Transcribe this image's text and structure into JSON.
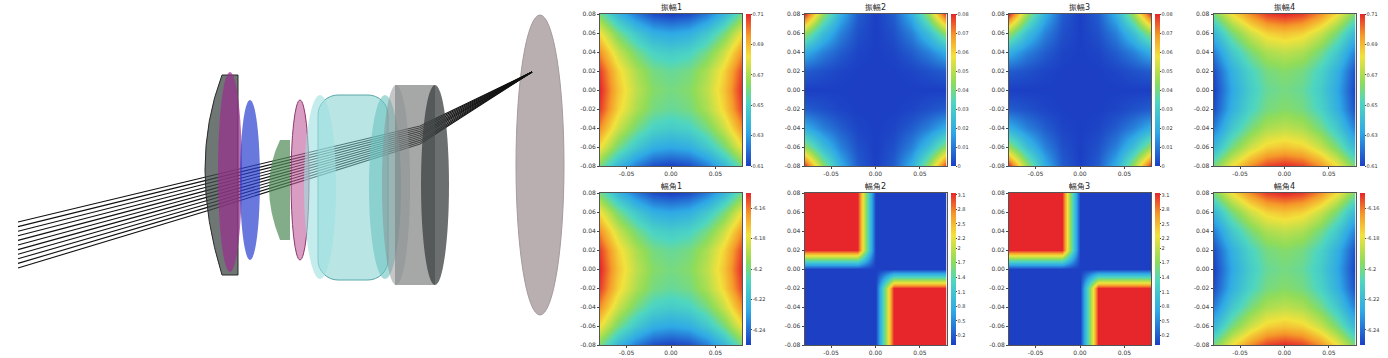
{
  "chart_data": [
    {
      "type": "heatmap",
      "title": "振幅1",
      "x": [
        -0.08,
        -0.06,
        -0.04,
        -0.02,
        0,
        0.02,
        0.04,
        0.06,
        0.08
      ],
      "y": [
        -0.08,
        -0.06,
        -0.04,
        -0.02,
        0,
        0.02,
        0.04,
        0.06,
        0.08
      ],
      "z": [
        [
          0.66,
          0.638,
          0.623,
          0.613,
          0.61,
          0.613,
          0.623,
          0.638,
          0.66
        ],
        [
          0.682,
          0.66,
          0.645,
          0.635,
          0.632,
          0.635,
          0.645,
          0.66,
          0.682
        ],
        [
          0.697,
          0.675,
          0.66,
          0.65,
          0.647,
          0.65,
          0.66,
          0.675,
          0.697
        ],
        [
          0.707,
          0.685,
          0.67,
          0.66,
          0.657,
          0.66,
          0.67,
          0.685,
          0.707
        ],
        [
          0.71,
          0.688,
          0.673,
          0.663,
          0.66,
          0.663,
          0.673,
          0.688,
          0.71
        ],
        [
          0.707,
          0.685,
          0.67,
          0.66,
          0.657,
          0.66,
          0.67,
          0.685,
          0.707
        ],
        [
          0.697,
          0.675,
          0.66,
          0.65,
          0.647,
          0.65,
          0.66,
          0.675,
          0.697
        ],
        [
          0.682,
          0.66,
          0.645,
          0.635,
          0.632,
          0.635,
          0.645,
          0.66,
          0.682
        ],
        [
          0.66,
          0.638,
          0.623,
          0.613,
          0.61,
          0.613,
          0.623,
          0.638,
          0.66
        ]
      ],
      "xlim": [
        -0.08,
        0.08
      ],
      "ylim": [
        -0.08,
        0.08
      ],
      "xticks": [
        -0.05,
        {
          "value": 0,
          "label": "0.00"
        },
        0.05
      ],
      "yticks": [
        -0.08,
        -0.06,
        -0.04,
        -0.02,
        {
          "value": 0,
          "label": "0.00"
        },
        0.02,
        0.04,
        0.06,
        0.08
      ],
      "zlim": [
        0.61,
        0.71
      ],
      "colorbar_ticks": [
        0.61,
        0.63,
        0.65,
        0.67,
        0.69,
        0.71
      ]
    },
    {
      "type": "heatmap",
      "title": "振幅2",
      "x": [
        -0.08,
        -0.06,
        -0.04,
        -0.02,
        0,
        0.02,
        0.04,
        0.06,
        0.08
      ],
      "y": [
        -0.08,
        -0.06,
        -0.04,
        -0.02,
        0,
        0.02,
        0.04,
        0.06,
        0.08
      ],
      "z": [
        [
          0.08,
          0.045,
          0.02,
          0.005,
          0,
          0.005,
          0.02,
          0.045,
          0.08
        ],
        [
          0.045,
          0.025,
          0.011,
          0.003,
          0,
          0.003,
          0.011,
          0.025,
          0.045
        ],
        [
          0.02,
          0.011,
          0.005,
          0.001,
          0,
          0.001,
          0.005,
          0.011,
          0.02
        ],
        [
          0.005,
          0.003,
          0.001,
          0,
          0,
          0,
          0.001,
          0.003,
          0.005
        ],
        [
          0,
          0,
          0,
          0,
          0,
          0,
          0,
          0,
          0
        ],
        [
          0.005,
          0.003,
          0.001,
          0,
          0,
          0,
          0.001,
          0.003,
          0.005
        ],
        [
          0.02,
          0.011,
          0.005,
          0.001,
          0,
          0.001,
          0.005,
          0.011,
          0.02
        ],
        [
          0.045,
          0.025,
          0.011,
          0.003,
          0,
          0.003,
          0.011,
          0.025,
          0.045
        ],
        [
          0.08,
          0.045,
          0.02,
          0.005,
          0,
          0.005,
          0.02,
          0.045,
          0.08
        ]
      ],
      "xlim": [
        -0.08,
        0.08
      ],
      "ylim": [
        -0.08,
        0.08
      ],
      "xticks": [
        -0.05,
        {
          "value": 0,
          "label": "0.00"
        },
        0.05
      ],
      "yticks": [
        -0.08,
        -0.06,
        -0.04,
        -0.02,
        {
          "value": 0,
          "label": "0.00"
        },
        0.02,
        0.04,
        0.06,
        0.08
      ],
      "zlim": [
        0,
        0.08
      ],
      "colorbar_ticks": [
        0,
        0.01,
        0.02,
        0.03,
        0.04,
        0.05,
        0.06,
        0.07,
        0.08
      ]
    },
    {
      "type": "heatmap",
      "title": "振幅3",
      "x": [
        -0.08,
        -0.06,
        -0.04,
        -0.02,
        0,
        0.02,
        0.04,
        0.06,
        0.08
      ],
      "y": [
        -0.08,
        -0.06,
        -0.04,
        -0.02,
        0,
        0.02,
        0.04,
        0.06,
        0.08
      ],
      "z": [
        [
          0.08,
          0.045,
          0.02,
          0.005,
          0,
          0.005,
          0.02,
          0.045,
          0.08
        ],
        [
          0.045,
          0.025,
          0.011,
          0.003,
          0,
          0.003,
          0.011,
          0.025,
          0.045
        ],
        [
          0.02,
          0.011,
          0.005,
          0.001,
          0,
          0.001,
          0.005,
          0.011,
          0.02
        ],
        [
          0.005,
          0.003,
          0.001,
          0,
          0,
          0,
          0.001,
          0.003,
          0.005
        ],
        [
          0,
          0,
          0,
          0,
          0,
          0,
          0,
          0,
          0
        ],
        [
          0.005,
          0.003,
          0.001,
          0,
          0,
          0,
          0.001,
          0.003,
          0.005
        ],
        [
          0.02,
          0.011,
          0.005,
          0.001,
          0,
          0.001,
          0.005,
          0.011,
          0.02
        ],
        [
          0.045,
          0.025,
          0.011,
          0.003,
          0,
          0.003,
          0.011,
          0.025,
          0.045
        ],
        [
          0.08,
          0.045,
          0.02,
          0.005,
          0,
          0.005,
          0.02,
          0.045,
          0.08
        ]
      ],
      "xlim": [
        -0.08,
        0.08
      ],
      "ylim": [
        -0.08,
        0.08
      ],
      "xticks": [
        -0.05,
        {
          "value": 0,
          "label": "0.00"
        },
        0.05
      ],
      "yticks": [
        -0.08,
        -0.06,
        -0.04,
        -0.02,
        {
          "value": 0,
          "label": "0.00"
        },
        0.02,
        0.04,
        0.06,
        0.08
      ],
      "zlim": [
        0,
        0.08
      ],
      "colorbar_ticks": [
        0,
        0.01,
        0.02,
        0.03,
        0.04,
        0.05,
        0.06,
        0.07,
        0.08
      ]
    },
    {
      "type": "heatmap",
      "title": "振幅4",
      "x": [
        -0.08,
        -0.06,
        -0.04,
        -0.02,
        0,
        0.02,
        0.04,
        0.06,
        0.08
      ],
      "y": [
        -0.08,
        -0.06,
        -0.04,
        -0.02,
        0,
        0.02,
        0.04,
        0.06,
        0.08
      ],
      "z": [
        [
          0.66,
          0.682,
          0.697,
          0.707,
          0.71,
          0.707,
          0.697,
          0.682,
          0.66
        ],
        [
          0.638,
          0.66,
          0.675,
          0.685,
          0.688,
          0.685,
          0.675,
          0.66,
          0.638
        ],
        [
          0.623,
          0.645,
          0.66,
          0.67,
          0.673,
          0.67,
          0.66,
          0.645,
          0.623
        ],
        [
          0.613,
          0.635,
          0.65,
          0.66,
          0.663,
          0.66,
          0.65,
          0.635,
          0.613
        ],
        [
          0.61,
          0.632,
          0.647,
          0.657,
          0.66,
          0.657,
          0.647,
          0.632,
          0.61
        ],
        [
          0.613,
          0.635,
          0.65,
          0.66,
          0.663,
          0.66,
          0.65,
          0.635,
          0.613
        ],
        [
          0.623,
          0.645,
          0.66,
          0.67,
          0.673,
          0.67,
          0.66,
          0.645,
          0.623
        ],
        [
          0.638,
          0.66,
          0.675,
          0.685,
          0.688,
          0.685,
          0.675,
          0.66,
          0.638
        ],
        [
          0.66,
          0.682,
          0.697,
          0.707,
          0.71,
          0.707,
          0.697,
          0.682,
          0.66
        ]
      ],
      "xlim": [
        -0.08,
        0.08
      ],
      "ylim": [
        -0.08,
        0.08
      ],
      "xticks": [
        -0.05,
        {
          "value": 0,
          "label": "0.00"
        },
        0.05
      ],
      "yticks": [
        -0.08,
        -0.06,
        -0.04,
        -0.02,
        {
          "value": 0,
          "label": "0.00"
        },
        0.02,
        0.04,
        0.06,
        0.08
      ],
      "zlim": [
        0.61,
        0.71
      ],
      "colorbar_ticks": [
        0.61,
        0.63,
        0.65,
        0.67,
        0.69,
        0.71
      ]
    },
    {
      "type": "heatmap",
      "title": "幅角1",
      "x": [
        -0.08,
        -0.06,
        -0.04,
        -0.02,
        0,
        0.02,
        0.04,
        0.06,
        0.08
      ],
      "y": [
        -0.08,
        -0.06,
        -0.04,
        -0.02,
        0,
        0.02,
        0.04,
        0.06,
        0.08
      ],
      "z": [
        [
          -6.2,
          -6.222,
          -6.237,
          -6.247,
          -6.25,
          -6.247,
          -6.237,
          -6.222,
          -6.2
        ],
        [
          -6.178,
          -6.2,
          -6.215,
          -6.225,
          -6.228,
          -6.225,
          -6.215,
          -6.2,
          -6.178
        ],
        [
          -6.163,
          -6.185,
          -6.2,
          -6.21,
          -6.213,
          -6.21,
          -6.2,
          -6.185,
          -6.163
        ],
        [
          -6.153,
          -6.175,
          -6.19,
          -6.2,
          -6.203,
          -6.2,
          -6.19,
          -6.175,
          -6.153
        ],
        [
          -6.15,
          -6.172,
          -6.187,
          -6.197,
          -6.2,
          -6.197,
          -6.187,
          -6.172,
          -6.15
        ],
        [
          -6.153,
          -6.175,
          -6.19,
          -6.2,
          -6.203,
          -6.2,
          -6.19,
          -6.175,
          -6.153
        ],
        [
          -6.163,
          -6.185,
          -6.2,
          -6.21,
          -6.213,
          -6.21,
          -6.2,
          -6.185,
          -6.163
        ],
        [
          -6.178,
          -6.2,
          -6.215,
          -6.225,
          -6.228,
          -6.225,
          -6.215,
          -6.2,
          -6.178
        ],
        [
          -6.2,
          -6.222,
          -6.237,
          -6.247,
          -6.25,
          -6.247,
          -6.237,
          -6.222,
          -6.2
        ]
      ],
      "xlim": [
        -0.08,
        0.08
      ],
      "ylim": [
        -0.08,
        0.08
      ],
      "xticks": [
        -0.05,
        {
          "value": 0,
          "label": "0.00"
        },
        0.05
      ],
      "yticks": [
        -0.08,
        -0.06,
        -0.04,
        -0.02,
        {
          "value": 0,
          "label": "0.00"
        },
        0.02,
        0.04,
        0.06,
        0.08
      ],
      "zlim": [
        -6.25,
        -6.15
      ],
      "colorbar_ticks": [
        -6.24,
        -6.22,
        -6.2,
        -6.18,
        -6.16
      ]
    },
    {
      "type": "heatmap",
      "title": "幅角2",
      "x": [
        -0.08,
        -0.06,
        -0.04,
        -0.02,
        0,
        0.02,
        0.04,
        0.06,
        0.08
      ],
      "y": [
        -0.08,
        -0.06,
        -0.04,
        -0.02,
        0,
        0.02,
        0.04,
        0.06,
        0.08
      ],
      "z": [
        [
          0,
          0,
          0,
          0,
          0,
          3.14,
          3.14,
          3.14,
          3.14
        ],
        [
          0,
          0,
          0,
          0,
          0,
          3.14,
          3.14,
          3.14,
          3.14
        ],
        [
          0,
          0,
          0,
          0,
          0,
          3.14,
          3.14,
          3.14,
          3.14
        ],
        [
          0,
          0,
          0,
          0,
          0,
          3.14,
          3.14,
          3.14,
          3.14
        ],
        [
          0,
          0,
          0,
          0,
          0,
          0,
          0,
          0,
          0
        ],
        [
          3.14,
          3.14,
          3.14,
          3.14,
          0,
          0,
          0,
          0,
          0
        ],
        [
          3.14,
          3.14,
          3.14,
          3.14,
          0,
          0,
          0,
          0,
          0
        ],
        [
          3.14,
          3.14,
          3.14,
          3.14,
          0,
          0,
          0,
          0,
          0
        ],
        [
          3.14,
          3.14,
          3.14,
          3.14,
          0,
          0,
          0,
          0,
          0
        ]
      ],
      "xlim": [
        -0.08,
        0.08
      ],
      "ylim": [
        -0.08,
        0.08
      ],
      "xticks": [
        -0.05,
        {
          "value": 0,
          "label": "0.00"
        },
        0.05
      ],
      "yticks": [
        -0.08,
        -0.06,
        -0.04,
        -0.02,
        {
          "value": 0,
          "label": "0.00"
        },
        0.02,
        0.04,
        0.06,
        0.08
      ],
      "zlim": [
        0,
        3.14
      ],
      "colorbar_ticks": [
        0.2,
        0.5,
        0.8,
        1.1,
        1.4,
        1.7,
        2,
        2.2,
        2.5,
        2.8,
        3.1
      ]
    },
    {
      "type": "heatmap",
      "title": "幅角3",
      "x": [
        -0.08,
        -0.06,
        -0.04,
        -0.02,
        0,
        0.02,
        0.04,
        0.06,
        0.08
      ],
      "y": [
        -0.08,
        -0.06,
        -0.04,
        -0.02,
        0,
        0.02,
        0.04,
        0.06,
        0.08
      ],
      "z": [
        [
          0,
          0,
          0,
          0,
          0,
          3.14,
          3.14,
          3.14,
          3.14
        ],
        [
          0,
          0,
          0,
          0,
          0,
          3.14,
          3.14,
          3.14,
          3.14
        ],
        [
          0,
          0,
          0,
          0,
          0,
          3.14,
          3.14,
          3.14,
          3.14
        ],
        [
          0,
          0,
          0,
          0,
          0,
          3.14,
          3.14,
          3.14,
          3.14
        ],
        [
          0,
          0,
          0,
          0,
          0,
          0,
          0,
          0,
          0
        ],
        [
          3.14,
          3.14,
          3.14,
          3.14,
          0,
          0,
          0,
          0,
          0
        ],
        [
          3.14,
          3.14,
          3.14,
          3.14,
          0,
          0,
          0,
          0,
          0
        ],
        [
          3.14,
          3.14,
          3.14,
          3.14,
          0,
          0,
          0,
          0,
          0
        ],
        [
          3.14,
          3.14,
          3.14,
          3.14,
          0,
          0,
          0,
          0,
          0
        ]
      ],
      "xlim": [
        -0.08,
        0.08
      ],
      "ylim": [
        -0.08,
        0.08
      ],
      "xticks": [
        -0.05,
        {
          "value": 0,
          "label": "0.00"
        },
        0.05
      ],
      "yticks": [
        -0.08,
        -0.06,
        -0.04,
        -0.02,
        {
          "value": 0,
          "label": "0.00"
        },
        0.02,
        0.04,
        0.06,
        0.08
      ],
      "zlim": [
        0,
        3.14
      ],
      "colorbar_ticks": [
        0.2,
        0.5,
        0.8,
        1.1,
        1.4,
        1.7,
        2,
        2.2,
        2.5,
        2.8,
        3.1
      ]
    },
    {
      "type": "heatmap",
      "title": "幅角4",
      "x": [
        -0.08,
        -0.06,
        -0.04,
        -0.02,
        0,
        0.02,
        0.04,
        0.06,
        0.08
      ],
      "y": [
        -0.08,
        -0.06,
        -0.04,
        -0.02,
        0,
        0.02,
        0.04,
        0.06,
        0.08
      ],
      "z": [
        [
          -6.2,
          -6.178,
          -6.163,
          -6.153,
          -6.15,
          -6.153,
          -6.163,
          -6.178,
          -6.2
        ],
        [
          -6.222,
          -6.2,
          -6.185,
          -6.175,
          -6.172,
          -6.175,
          -6.185,
          -6.2,
          -6.222
        ],
        [
          -6.237,
          -6.215,
          -6.2,
          -6.19,
          -6.187,
          -6.19,
          -6.2,
          -6.215,
          -6.237
        ],
        [
          -6.247,
          -6.225,
          -6.21,
          -6.2,
          -6.197,
          -6.2,
          -6.21,
          -6.225,
          -6.247
        ],
        [
          -6.25,
          -6.228,
          -6.213,
          -6.203,
          -6.2,
          -6.203,
          -6.213,
          -6.228,
          -6.25
        ],
        [
          -6.247,
          -6.225,
          -6.21,
          -6.2,
          -6.197,
          -6.2,
          -6.21,
          -6.225,
          -6.247
        ],
        [
          -6.237,
          -6.215,
          -6.2,
          -6.19,
          -6.187,
          -6.19,
          -6.2,
          -6.215,
          -6.237
        ],
        [
          -6.222,
          -6.2,
          -6.185,
          -6.175,
          -6.172,
          -6.175,
          -6.185,
          -6.2,
          -6.222
        ],
        [
          -6.2,
          -6.178,
          -6.163,
          -6.153,
          -6.15,
          -6.153,
          -6.163,
          -6.178,
          -6.2
        ]
      ],
      "xlim": [
        -0.08,
        0.08
      ],
      "ylim": [
        -0.08,
        0.08
      ],
      "xticks": [
        -0.05,
        {
          "value": 0,
          "label": "0.00"
        },
        0.05
      ],
      "yticks": [
        -0.08,
        -0.06,
        -0.04,
        -0.02,
        {
          "value": 0,
          "label": "0.00"
        },
        0.02,
        0.04,
        0.06,
        0.08
      ],
      "zlim": [
        -6.25,
        -6.15
      ],
      "colorbar_ticks": [
        -6.24,
        -6.22,
        -6.2,
        -6.18,
        -6.16
      ]
    }
  ]
}
